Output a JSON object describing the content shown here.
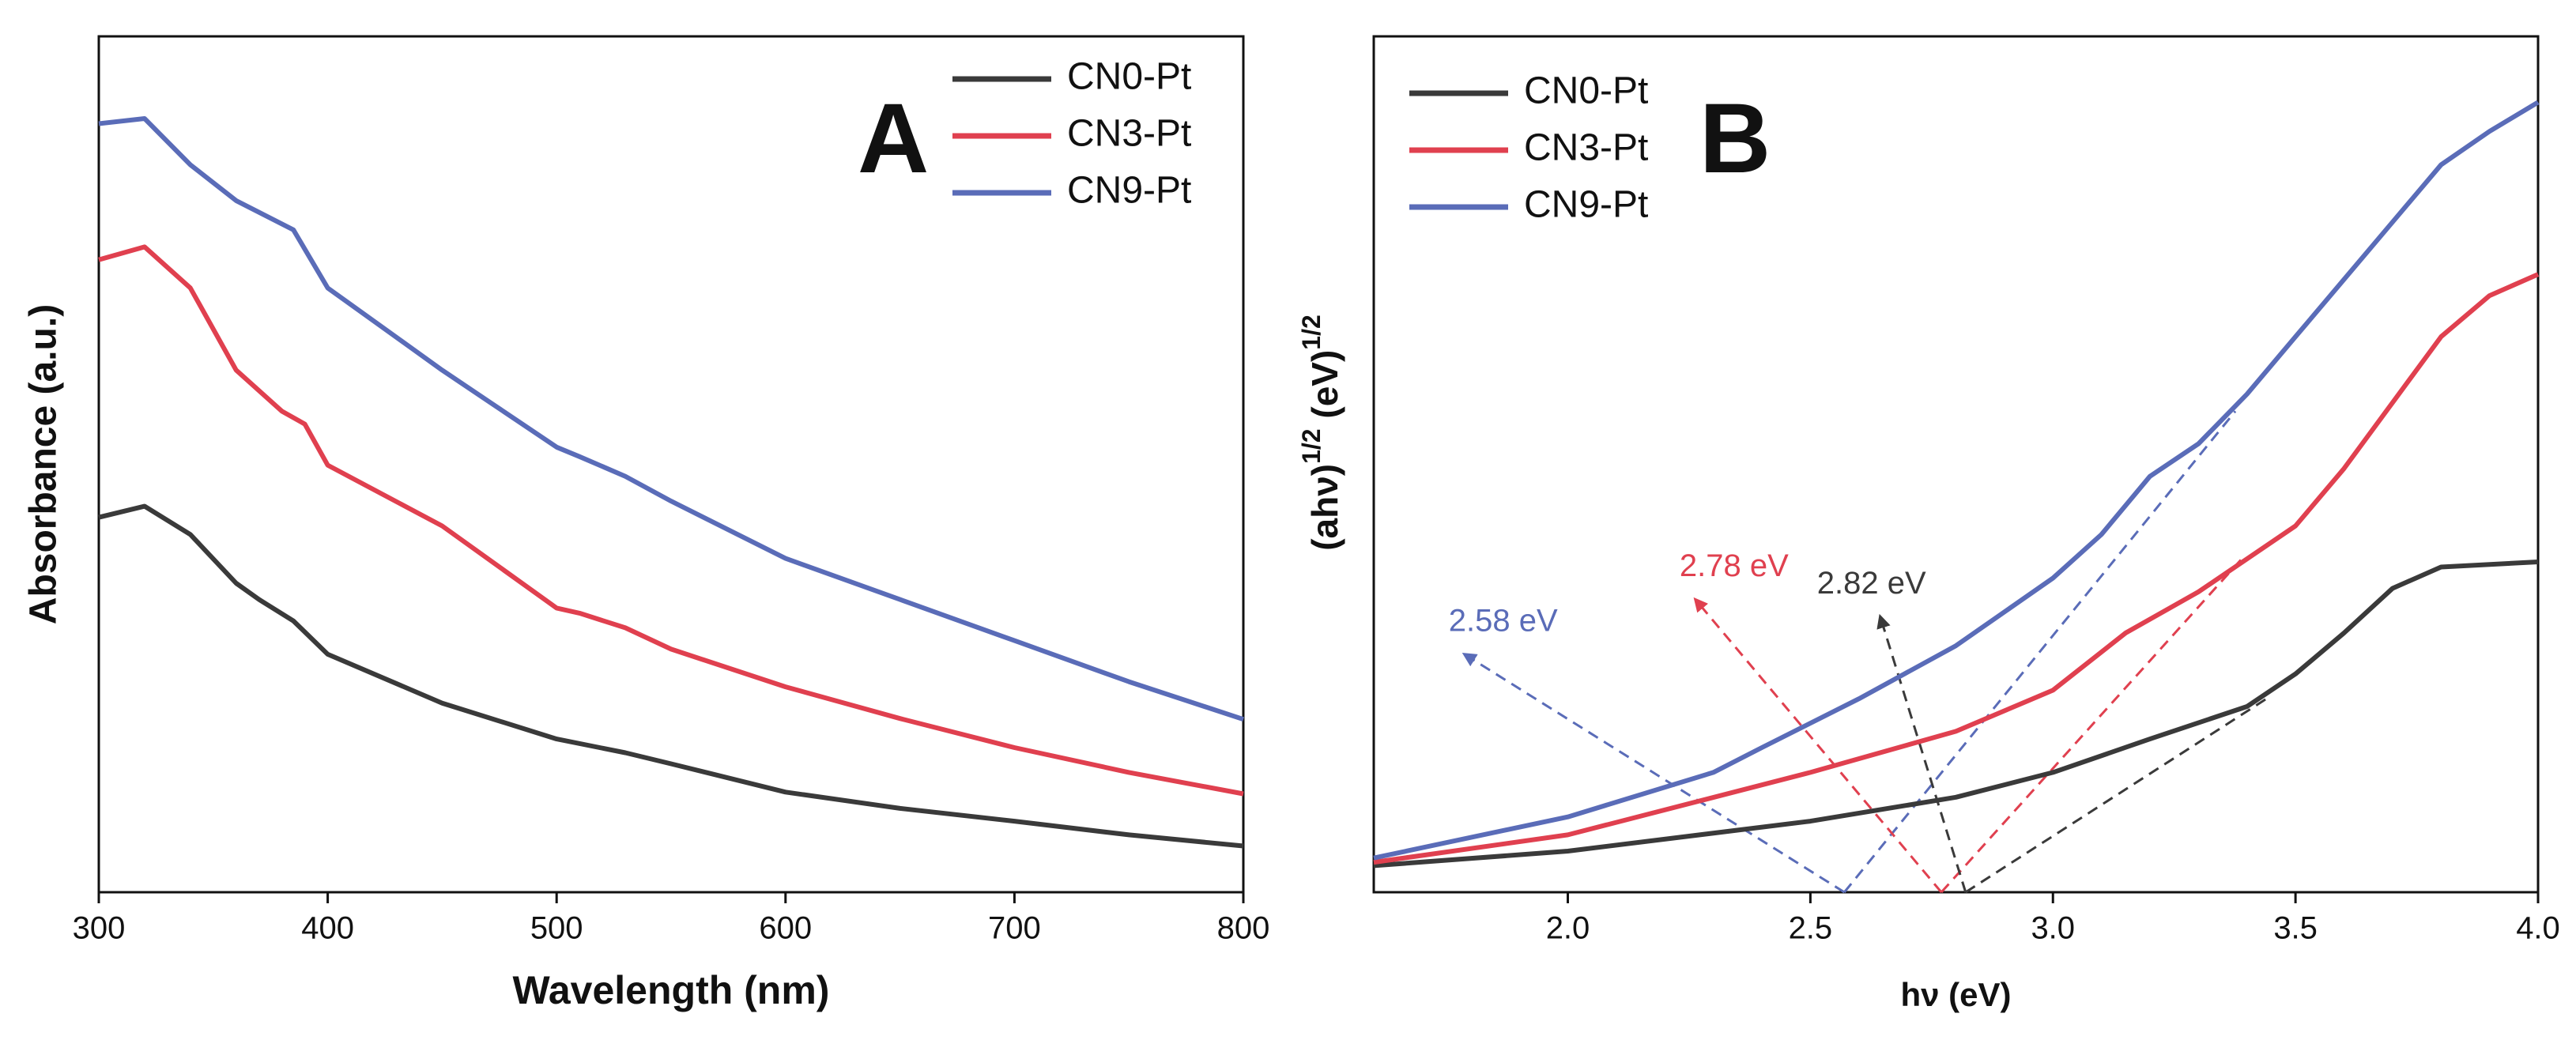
{
  "chart_data": [
    {
      "type": "line",
      "panel_label": "A",
      "xlabel": "Wavelength (nm)",
      "ylabel": "Absorbance (a.u.)",
      "xlim": [
        300,
        800
      ],
      "xticks": [
        300,
        400,
        500,
        600,
        700,
        800
      ],
      "ylim": [
        0,
        1
      ],
      "legend": "upper right",
      "series": [
        {
          "name": "CN0-Pt",
          "color": "#3a3a3a",
          "x": [
            300,
            320,
            340,
            360,
            370,
            385,
            400,
            450,
            500,
            530,
            550,
            600,
            650,
            700,
            750,
            800
          ],
          "values": [
            0.438,
            0.451,
            0.418,
            0.361,
            0.342,
            0.317,
            0.278,
            0.221,
            0.179,
            0.163,
            0.15,
            0.117,
            0.098,
            0.083,
            0.067,
            0.054
          ]
        },
        {
          "name": "CN3-Pt",
          "color": "#e0404f",
          "x": [
            300,
            320,
            340,
            360,
            380,
            390,
            400,
            450,
            500,
            510,
            530,
            550,
            600,
            650,
            700,
            750,
            800
          ],
          "values": [
            0.739,
            0.754,
            0.706,
            0.61,
            0.562,
            0.547,
            0.499,
            0.428,
            0.332,
            0.326,
            0.309,
            0.284,
            0.24,
            0.203,
            0.169,
            0.14,
            0.115
          ]
        },
        {
          "name": "CN9-Pt",
          "color": "#5a6cb8",
          "x": [
            300,
            320,
            340,
            360,
            385,
            400,
            450,
            500,
            510,
            530,
            550,
            600,
            650,
            700,
            750,
            800
          ],
          "values": [
            0.898,
            0.904,
            0.85,
            0.808,
            0.774,
            0.706,
            0.61,
            0.52,
            0.509,
            0.486,
            0.457,
            0.39,
            0.342,
            0.294,
            0.246,
            0.202
          ]
        }
      ]
    },
    {
      "type": "line",
      "panel_label": "B",
      "xlabel": "hν (eV)",
      "ylabel": [
        "(ahν)",
        "1/2",
        " (eV)",
        "1/2"
      ],
      "xlim": [
        1.6,
        4.0
      ],
      "xticks": [
        {
          "value": 2,
          "label": "2.0"
        },
        2.5,
        {
          "value": 3,
          "label": "3.0"
        },
        3.5,
        {
          "value": 4,
          "label": "4.0"
        }
      ],
      "ylim": [
        0,
        1
      ],
      "legend": "upper left",
      "series": [
        {
          "name": "CN0-Pt",
          "color": "#3a3a3a",
          "x": [
            1.6,
            2.0,
            2.5,
            2.8,
            3.0,
            3.2,
            3.4,
            3.5,
            3.6,
            3.7,
            3.8,
            4.0
          ],
          "values": [
            0.031,
            0.048,
            0.083,
            0.111,
            0.14,
            0.179,
            0.217,
            0.255,
            0.303,
            0.355,
            0.38,
            0.386
          ]
        },
        {
          "name": "CN3-Pt",
          "color": "#e0404f",
          "x": [
            1.6,
            2.0,
            2.5,
            2.8,
            3.0,
            3.15,
            3.3,
            3.5,
            3.6,
            3.7,
            3.8,
            3.9,
            4.0
          ],
          "values": [
            0.035,
            0.067,
            0.14,
            0.188,
            0.236,
            0.303,
            0.351,
            0.428,
            0.495,
            0.572,
            0.649,
            0.697,
            0.722
          ]
        },
        {
          "name": "CN9-Pt",
          "color": "#5a6cb8",
          "x": [
            1.6,
            2.0,
            2.3,
            2.4,
            2.6,
            2.8,
            3.0,
            3.1,
            3.2,
            3.3,
            3.4,
            3.5,
            3.6,
            3.7,
            3.8,
            3.9,
            4.0
          ],
          "values": [
            0.04,
            0.088,
            0.14,
            0.169,
            0.226,
            0.288,
            0.367,
            0.418,
            0.486,
            0.524,
            0.582,
            0.649,
            0.716,
            0.783,
            0.85,
            0.889,
            0.923
          ]
        }
      ],
      "guides": [
        {
          "label": "2.58 eV",
          "color": "#5a6cb8",
          "intercept": 2.57,
          "arrow_to": [
            1.787,
            0.278
          ],
          "tangent_to": [
            3.376,
            0.562
          ]
        },
        {
          "label": "2.78 eV",
          "color": "#e0404f",
          "intercept": 2.77,
          "arrow_to": [
            2.263,
            0.342
          ],
          "tangent_to": [
            3.39,
            0.39
          ]
        },
        {
          "label": "2.82 eV",
          "color": "#3a3a3a",
          "intercept": 2.82,
          "arrow_to": [
            2.644,
            0.322
          ],
          "tangent_to": [
            3.44,
            0.226
          ]
        }
      ]
    }
  ]
}
